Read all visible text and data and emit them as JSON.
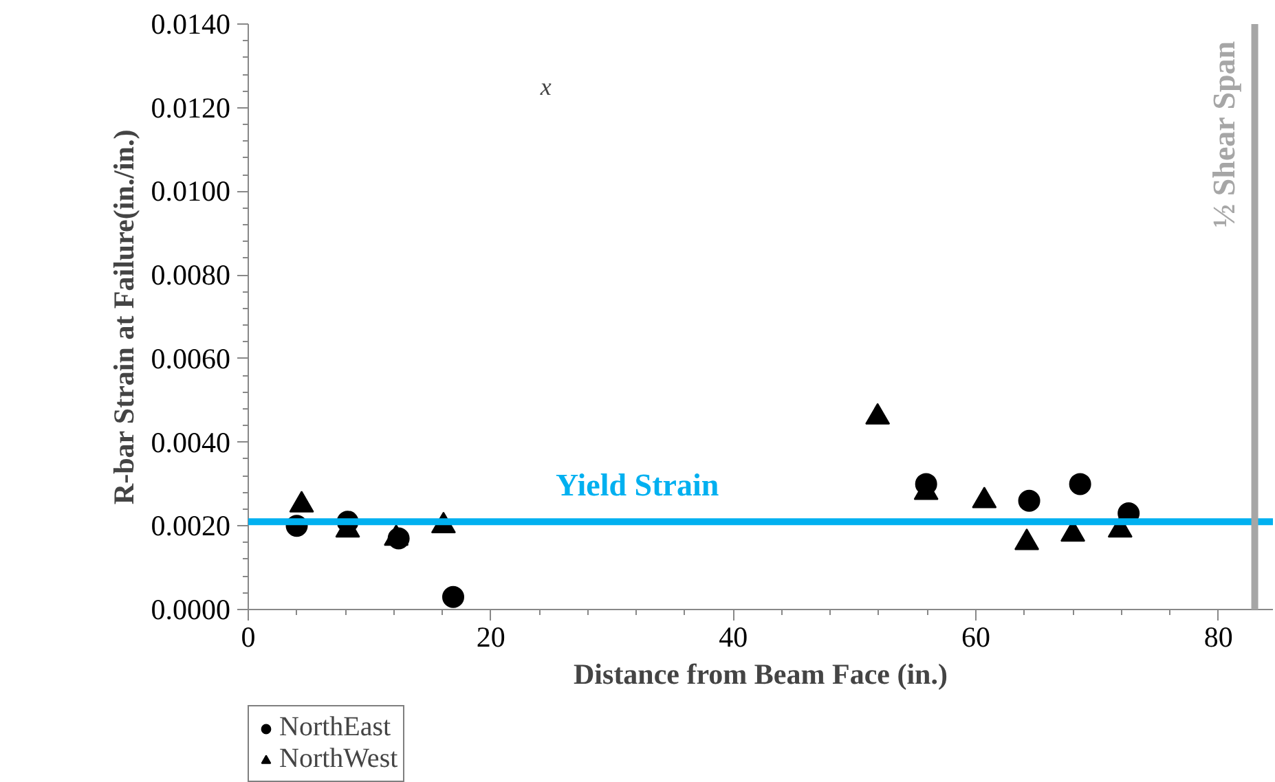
{
  "chart_data": {
    "type": "scatter",
    "xlabel": "Distance from Beam Face (in.)",
    "ylabel": "R-bar Strain at Failure(in./in.)",
    "xlim": [
      0,
      84.5
    ],
    "xticks": [
      0,
      20,
      40,
      60,
      80
    ],
    "ylim": [
      0,
      0.014
    ],
    "yticks": [
      {
        "value": 0,
        "label": "0.0000"
      },
      {
        "value": 0.002,
        "label": "0.0020"
      },
      {
        "value": 0.004,
        "label": "0.0040"
      },
      {
        "value": 0.006,
        "label": "0.0060"
      },
      {
        "value": 0.008,
        "label": "0.0080"
      },
      {
        "value": 0.01,
        "label": "0.0100"
      },
      {
        "value": 0.012,
        "label": "0.0120"
      },
      {
        "value": 0.014,
        "label": "0.0140"
      }
    ],
    "grid": false,
    "legend": "bottom left",
    "series": [
      {
        "name": "NorthEast",
        "color": "#000000",
        "marker": "circle",
        "x": [
          4.0,
          8.2,
          12.4,
          16.9,
          55.9,
          64.4,
          68.6,
          72.6
        ],
        "values": [
          0.002,
          0.0021,
          0.0017,
          0.0003,
          0.003,
          0.0026,
          0.003,
          0.0023
        ]
      },
      {
        "name": "NorthWest",
        "color": "#000000",
        "marker": "triangle",
        "x": [
          4.4,
          8.2,
          12.2,
          16.1,
          51.9,
          55.9,
          60.7,
          64.2,
          68.0,
          71.9
        ],
        "values": [
          0.0025,
          0.0019,
          0.0017,
          0.002,
          0.0046,
          0.0028,
          0.0026,
          0.0016,
          0.0018,
          0.0019
        ]
      }
    ],
    "ref_lines": [
      {
        "axis": "y",
        "value": 0.0021,
        "label": "Yield Strain",
        "color": "#00b0f0"
      },
      {
        "axis": "x",
        "value": 83,
        "label": "½ Shear Span",
        "color": "#a6a6a6"
      }
    ],
    "annotations": [
      "x"
    ]
  }
}
